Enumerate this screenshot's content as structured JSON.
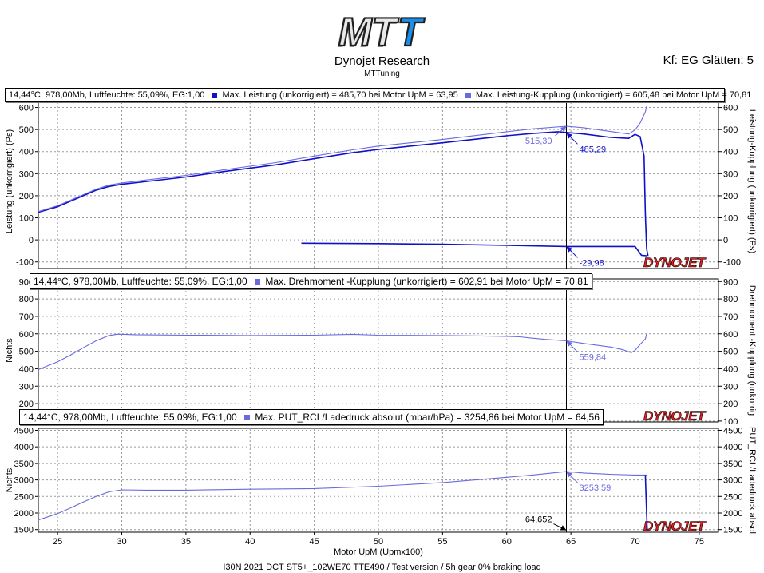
{
  "header": {
    "logo_text": "MTT",
    "title": "Dynojet Research",
    "subtitle": "MTTuning",
    "smoothing": "Kf: EG Glätten: 5"
  },
  "footer": "I30N 2021 DCT ST5+_102WE70 TTE490 / Test version / 5h gear 0% braking load",
  "watermark": "DYNOJET",
  "colors": {
    "series_dark": "#1010c8",
    "series_light": "#6a6ae0",
    "cursor": "#000000"
  },
  "legends": {
    "p1": {
      "conditions": "14,44°C, 978,00Mb, Luftfeuchte: 55,09%, EG:1,00",
      "series1": "Max. Leistung (unkorrigiert) = 485,70 bei Motor UpM = 63,95",
      "series2": "Max. Leistung-Kupplung (unkorrigiert) = 605,48 bei Motor UpM = 70,81"
    },
    "p2": {
      "conditions": "14,44°C, 978,00Mb, Luftfeuchte: 55,09%, EG:1,00",
      "series1": "Max. Drehmoment -Kupplung (unkorrigiert) = 602,91 bei Motor UpM = 70,81"
    },
    "p3": {
      "conditions": "14,44°C, 978,00Mb, Luftfeuchte: 55,09%, EG:1,00",
      "series1": "Max. PUT_RCL/Ladedruck absolut (mbar/hPa)  = 3254,86 bei Motor UpM = 64,56"
    }
  },
  "chart_data": [
    {
      "type": "line",
      "ylabel": "Leistung (unkorrigiert) (Ps)",
      "ylabel_right": "Leistung-Kupplung (unkorrigiert) (Ps)",
      "xlim": [
        23.5,
        76.5
      ],
      "ylim": [
        -130,
        660
      ],
      "yticks": [
        -100,
        0,
        100,
        200,
        300,
        400,
        500,
        600
      ],
      "cursor_x": 64.65,
      "series": [
        {
          "name": "Max. Leistung (unkorrigiert)",
          "color": "#1010c8",
          "x": [
            23.5,
            25,
            26,
            27,
            28,
            29,
            30,
            32,
            35,
            38,
            40,
            42,
            45,
            48,
            50,
            55,
            60,
            62,
            64,
            66,
            68,
            69.5,
            70,
            70.4,
            70.7,
            70.8,
            70.9,
            71.0,
            71.05
          ],
          "y": [
            125,
            150,
            175,
            200,
            225,
            242,
            252,
            265,
            285,
            310,
            325,
            340,
            368,
            395,
            410,
            440,
            472,
            482,
            490,
            480,
            465,
            460,
            478,
            468,
            380,
            120,
            -40,
            -70,
            -70
          ]
        },
        {
          "name": "Max. Leistung-Kupplung (unkorrigiert)",
          "color": "#6a6ae0",
          "x": [
            23.5,
            25,
            26,
            27,
            28,
            29,
            30,
            32,
            35,
            38,
            40,
            42,
            45,
            48,
            50,
            55,
            60,
            62,
            64.65,
            66,
            68,
            69.5,
            70,
            70.4,
            70.8,
            70.9
          ],
          "y": [
            128,
            155,
            180,
            205,
            230,
            248,
            258,
            272,
            292,
            318,
            334,
            350,
            380,
            408,
            425,
            455,
            490,
            503,
            515,
            508,
            492,
            480,
            498,
            530,
            580,
            605
          ]
        },
        {
          "name": "negative trace",
          "color": "#1010c8",
          "x": [
            44,
            50,
            55,
            60,
            64.65,
            68,
            70,
            70.5,
            70.9
          ],
          "y": [
            -15,
            -17,
            -20,
            -25,
            -30,
            -30,
            -30,
            -70,
            -72
          ]
        }
      ],
      "annotations": [
        {
          "x": 64.65,
          "y": 515,
          "text": "515,30",
          "color": "#6a6ae0",
          "side": "left"
        },
        {
          "x": 64.65,
          "y": 485,
          "text": "485,29",
          "color": "#1010c8",
          "side": "right"
        },
        {
          "x": 64.65,
          "y": -30,
          "text": "-29,98",
          "color": "#1010c8",
          "side": "right"
        }
      ]
    },
    {
      "type": "line",
      "ylabel": "Nichts",
      "ylabel_right": "Drehmoment -Kupplung (unkorrig",
      "xlim": [
        23.5,
        76.5
      ],
      "ylim": [
        95,
        915
      ],
      "yticks": [
        100,
        200,
        300,
        400,
        500,
        600,
        700,
        800,
        900
      ],
      "cursor_x": 64.65,
      "series": [
        {
          "name": "Max. Drehmoment -Kupplung (unkorrigiert)",
          "color": "#6a6ae0",
          "x": [
            23.5,
            25,
            26,
            27,
            28,
            29,
            29.7,
            31,
            35,
            40,
            45,
            48,
            50,
            55,
            58,
            60,
            61,
            62,
            63,
            64.65,
            66,
            68,
            69,
            69.7,
            70,
            70.4,
            70.8,
            70.9
          ],
          "y": [
            395,
            440,
            478,
            520,
            560,
            590,
            598,
            595,
            592,
            590,
            592,
            597,
            592,
            590,
            588,
            585,
            583,
            575,
            568,
            560,
            545,
            525,
            510,
            492,
            505,
            540,
            570,
            600
          ]
        }
      ],
      "annotations": [
        {
          "x": 64.65,
          "y": 560,
          "text": "559,84",
          "color": "#6a6ae0",
          "side": "right"
        }
      ]
    },
    {
      "type": "line",
      "ylabel": "Nichts",
      "ylabel_right": "PUT_RCL/Ladedruck absol",
      "xlabel": "Motor UpM (Upmx100)",
      "xlim": [
        23.5,
        76.5
      ],
      "ylim": [
        1420,
        4560
      ],
      "yticks": [
        1500,
        2000,
        2500,
        3000,
        3500,
        4000,
        4500
      ],
      "xticks": [
        25,
        30,
        35,
        40,
        45,
        50,
        55,
        60,
        65,
        70,
        75
      ],
      "cursor_x": 64.65,
      "series": [
        {
          "name": "Max. PUT_RCL/Ladedruck absolut (mbar/hPa)",
          "color": "#6a6ae0",
          "x": [
            23.5,
            25,
            26,
            27,
            28,
            29,
            30,
            32,
            35,
            40,
            45,
            50,
            55,
            60,
            62,
            64.65,
            66,
            68,
            70,
            70.9
          ],
          "y": [
            1790,
            1980,
            2150,
            2330,
            2500,
            2640,
            2700,
            2690,
            2690,
            2720,
            2740,
            2810,
            2920,
            3080,
            3150,
            3254,
            3210,
            3170,
            3150,
            3150
          ]
        },
        {
          "name": "drop",
          "color": "#1010c8",
          "x": [
            70.8,
            70.9,
            70.95
          ],
          "y": [
            3150,
            2000,
            1450
          ]
        }
      ],
      "annotations": [
        {
          "x": 64.65,
          "y": 3254,
          "text": "3253,59",
          "color": "#6a6ae0",
          "side": "right"
        },
        {
          "x": 64.65,
          "y": 1480,
          "text": "64,652",
          "color": "#000000",
          "side": "above-left"
        }
      ]
    }
  ]
}
